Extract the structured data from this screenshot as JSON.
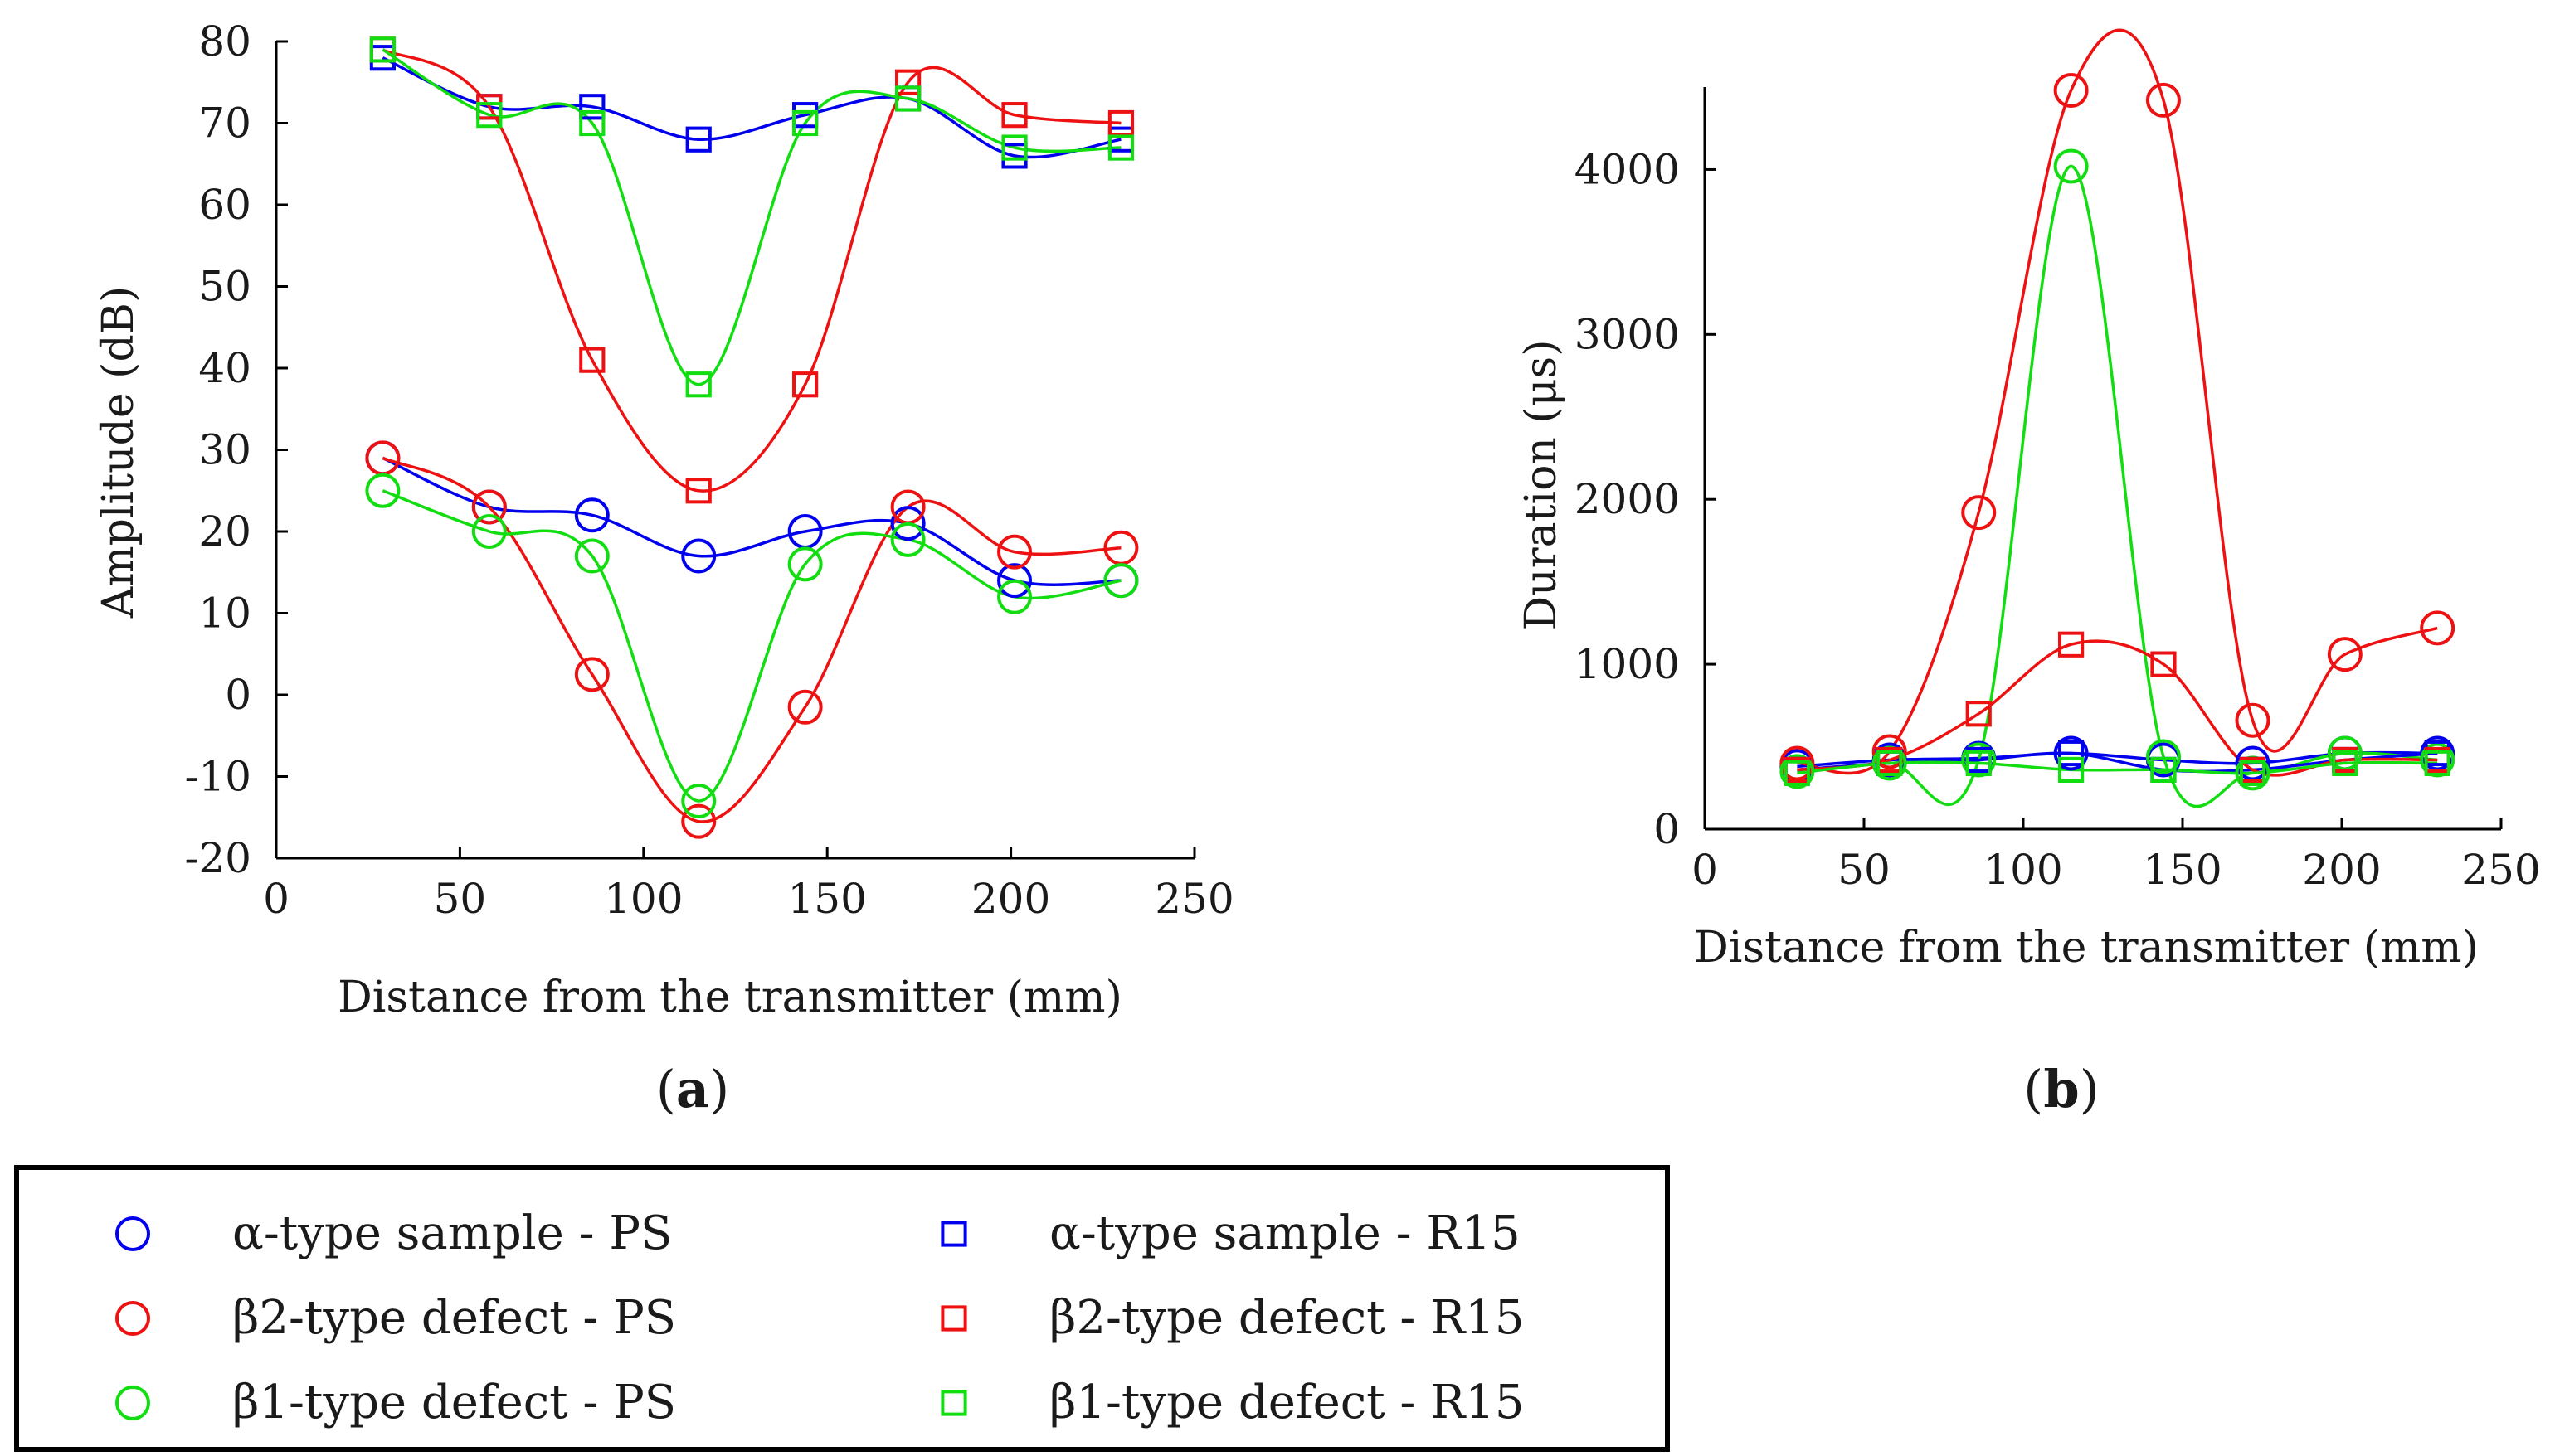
{
  "colors": {
    "blue": "#0000ee",
    "red": "#ee1111",
    "green": "#11dd11",
    "axis": "#000000"
  },
  "chart_data": [
    {
      "type": "line",
      "panel_label": "(a)",
      "panel_letter": "a",
      "xlabel": "Distance from the transmitter (mm)",
      "ylabel": "Amplitude (dB)",
      "xlim": [
        0,
        250
      ],
      "ylim": [
        -20,
        80
      ],
      "xticks": [
        0,
        50,
        100,
        150,
        200,
        250
      ],
      "yticks": [
        -20,
        -10,
        0,
        10,
        20,
        30,
        40,
        50,
        60,
        70,
        80
      ],
      "x": [
        29,
        58,
        86,
        115,
        144,
        172,
        201,
        230
      ],
      "series": [
        {
          "name": "α-type sample - PS",
          "marker": "circle",
          "color": "blue",
          "values": [
            29,
            23,
            22,
            17,
            20,
            21,
            14,
            14
          ]
        },
        {
          "name": "β2-type defect - PS",
          "marker": "circle",
          "color": "red",
          "values": [
            29,
            23,
            2.5,
            -15.5,
            -1.5,
            23,
            17.5,
            18
          ]
        },
        {
          "name": "β1-type defect - PS",
          "marker": "circle",
          "color": "green",
          "values": [
            25,
            20,
            17,
            -13,
            16,
            19,
            12,
            14
          ]
        },
        {
          "name": "α-type sample - R15",
          "marker": "square",
          "color": "blue",
          "values": [
            78,
            72,
            72,
            68,
            71,
            73,
            66,
            68
          ]
        },
        {
          "name": "β2-type defect - R15",
          "marker": "square",
          "color": "red",
          "values": [
            79,
            72,
            41,
            25,
            38,
            75,
            71,
            70
          ]
        },
        {
          "name": "β1-type defect - R15",
          "marker": "square",
          "color": "green",
          "values": [
            79,
            71,
            70,
            38,
            70,
            73,
            67,
            67
          ]
        }
      ]
    },
    {
      "type": "line",
      "panel_label": "(b)",
      "panel_letter": "b",
      "xlabel": "Distance from the transmitter (mm)",
      "ylabel": "Duration (μs)",
      "xlim": [
        0,
        250
      ],
      "ylim": [
        0,
        4500
      ],
      "xticks": [
        0,
        50,
        100,
        150,
        200,
        250
      ],
      "yticks": [
        0,
        1000,
        2000,
        3000,
        4000
      ],
      "x": [
        29,
        58,
        86,
        115,
        144,
        172,
        201,
        230
      ],
      "series": [
        {
          "name": "α-type sample - PS",
          "marker": "circle",
          "color": "blue",
          "values": [
            380,
            420,
            430,
            460,
            420,
            400,
            460,
            460
          ]
        },
        {
          "name": "β2-type defect - PS",
          "marker": "circle",
          "color": "red",
          "values": [
            400,
            470,
            1920,
            4480,
            4420,
            660,
            1060,
            1220
          ]
        },
        {
          "name": "β1-type defect - PS",
          "marker": "circle",
          "color": "green",
          "values": [
            350,
            400,
            420,
            4020,
            440,
            340,
            460,
            420
          ]
        },
        {
          "name": "α-type sample - R15",
          "marker": "square",
          "color": "blue",
          "values": [
            360,
            400,
            420,
            460,
            360,
            360,
            420,
            460
          ]
        },
        {
          "name": "β2-type defect - R15",
          "marker": "square",
          "color": "red",
          "values": [
            360,
            420,
            700,
            1120,
            1000,
            360,
            420,
            420
          ]
        },
        {
          "name": "β1-type defect - R15",
          "marker": "square",
          "color": "green",
          "values": [
            340,
            400,
            400,
            360,
            360,
            340,
            400,
            400
          ]
        }
      ]
    }
  ],
  "legend": {
    "items": [
      {
        "label": "α-type sample - PS",
        "marker": "circle",
        "color": "blue"
      },
      {
        "label": "β2-type defect - PS",
        "marker": "circle",
        "color": "red"
      },
      {
        "label": "β1-type defect - PS",
        "marker": "circle",
        "color": "green"
      },
      {
        "label": "α-type sample - R15",
        "marker": "square",
        "color": "blue"
      },
      {
        "label": "β2-type defect - R15",
        "marker": "square",
        "color": "red"
      },
      {
        "label": "β1-type defect - R15",
        "marker": "square",
        "color": "green"
      }
    ]
  }
}
